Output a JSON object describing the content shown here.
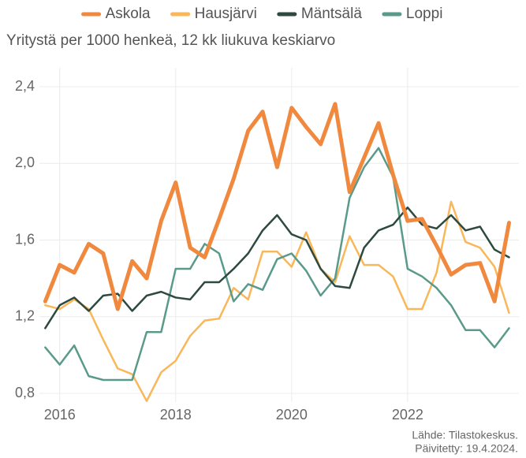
{
  "chart_data": {
    "type": "line",
    "subtitle": "Yritystä per 1000 henkeä, 12 kk liukuva keskiarvo",
    "notes": [
      "Lähde: Tilastokeskus.",
      "Päivitetty: 19.4.2024."
    ],
    "x": [
      2015.75,
      2016,
      2016.25,
      2016.5,
      2016.75,
      2017,
      2017.25,
      2017.5,
      2017.75,
      2018,
      2018.25,
      2018.5,
      2018.75,
      2019,
      2019.25,
      2019.5,
      2019.75,
      2020,
      2020.25,
      2020.5,
      2020.75,
      2021,
      2021.25,
      2021.5,
      2021.75,
      2022,
      2022.25,
      2022.5,
      2022.75,
      2023,
      2023.25,
      2023.5,
      2023.75
    ],
    "series": [
      {
        "name": "Askola",
        "color": "#f0883e",
        "values": [
          1.28,
          1.47,
          1.43,
          1.58,
          1.53,
          1.24,
          1.49,
          1.4,
          1.7,
          1.9,
          1.56,
          1.51,
          1.71,
          1.92,
          2.17,
          2.27,
          1.98,
          2.29,
          2.19,
          2.1,
          2.31,
          1.85,
          2.03,
          2.21,
          1.94,
          1.7,
          1.71,
          1.57,
          1.42,
          1.47,
          1.48,
          1.28,
          1.69
        ]
      },
      {
        "name": "Hausjärvi",
        "color": "#f9b75a",
        "values": [
          1.26,
          1.24,
          1.29,
          1.24,
          1.08,
          0.93,
          0.9,
          0.76,
          0.91,
          0.97,
          1.1,
          1.18,
          1.19,
          1.35,
          1.29,
          1.54,
          1.54,
          1.46,
          1.64,
          1.45,
          1.38,
          1.62,
          1.47,
          1.47,
          1.41,
          1.24,
          1.24,
          1.43,
          1.8,
          1.59,
          1.56,
          1.46,
          1.22
        ]
      },
      {
        "name": "Mäntsälä",
        "color": "#2e4a3f",
        "values": [
          1.14,
          1.26,
          1.3,
          1.23,
          1.31,
          1.32,
          1.23,
          1.31,
          1.33,
          1.3,
          1.29,
          1.38,
          1.38,
          1.45,
          1.53,
          1.65,
          1.73,
          1.63,
          1.6,
          1.45,
          1.36,
          1.35,
          1.56,
          1.65,
          1.68,
          1.77,
          1.68,
          1.66,
          1.73,
          1.65,
          1.67,
          1.55,
          1.51
        ]
      },
      {
        "name": "Loppi",
        "color": "#5a9a8a",
        "values": [
          1.04,
          0.95,
          1.05,
          0.89,
          0.87,
          0.87,
          0.87,
          1.12,
          1.12,
          1.45,
          1.45,
          1.58,
          1.53,
          1.28,
          1.37,
          1.34,
          1.5,
          1.53,
          1.44,
          1.31,
          1.4,
          1.82,
          1.98,
          2.08,
          1.93,
          1.45,
          1.41,
          1.35,
          1.26,
          1.13,
          1.13,
          1.04,
          1.14
        ]
      }
    ],
    "xlim": [
      2015.65,
      2023.92
    ],
    "xticks": [
      2016,
      2018,
      2020,
      2022
    ],
    "ylim": [
      0.8,
      2.4
    ],
    "yticks": [
      {
        "value": 0.8,
        "label": "0,8"
      },
      {
        "value": 1.2,
        "label": "1,2"
      },
      {
        "value": 1.6,
        "label": "1,6"
      },
      {
        "value": 2.0,
        "label": "2,0"
      },
      {
        "value": 2.4,
        "label": "2,4"
      }
    ],
    "grid": true,
    "legend": "top"
  }
}
